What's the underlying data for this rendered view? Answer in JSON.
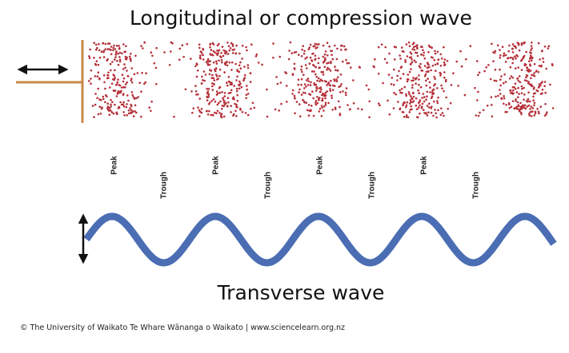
{
  "title": "Longitudinal or compression wave",
  "labels": [
    "Peak",
    "Trough",
    "Peak",
    "Trough",
    "Peak",
    "Trough",
    "Peak",
    "Trough"
  ],
  "transverse_label": "Transverse wave",
  "credit": "© The University of Waikato Te Whare Wānanga o Waikato | www.sciencelearn.org.nz"
}
